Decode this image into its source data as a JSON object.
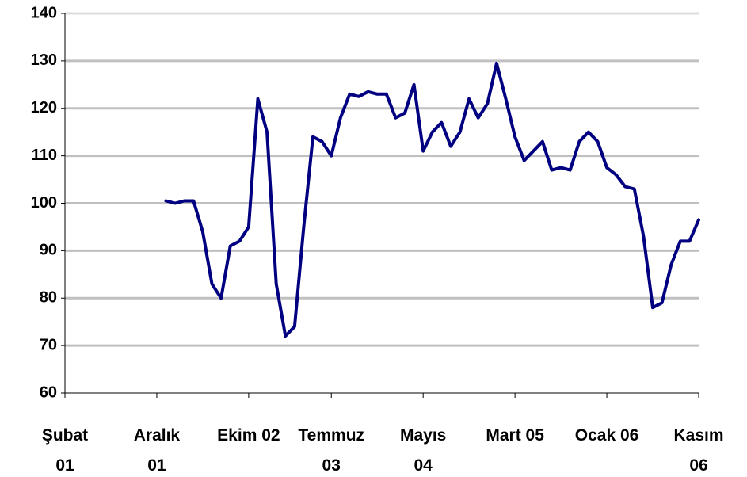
{
  "chart_data": {
    "type": "line",
    "categories": [
      "Şubat 01",
      null,
      null,
      null,
      null,
      null,
      null,
      null,
      null,
      null,
      "Aralık 01",
      null,
      null,
      null,
      null,
      null,
      null,
      null,
      null,
      null,
      "Ekim 02",
      null,
      null,
      null,
      null,
      null,
      null,
      null,
      null,
      "Temmuz 03",
      null,
      null,
      null,
      null,
      null,
      null,
      null,
      null,
      null,
      "Mayıs 04",
      null,
      null,
      null,
      null,
      null,
      null,
      null,
      null,
      null,
      "Mart 05",
      null,
      null,
      null,
      null,
      null,
      null,
      null,
      null,
      null,
      "Ocak 06",
      null,
      null,
      null,
      null,
      null,
      null,
      null,
      null,
      null,
      "Kasım 06"
    ],
    "series": [
      {
        "color": "#000080",
        "values": [
          null,
          null,
          null,
          null,
          null,
          null,
          null,
          null,
          null,
          null,
          null,
          100.5,
          100,
          100.5,
          100.5,
          94,
          83,
          80,
          91,
          92,
          95,
          122,
          115,
          83,
          72,
          74,
          95,
          114,
          113,
          110,
          118,
          123,
          122.5,
          123.5,
          123,
          123,
          118,
          119,
          125,
          111,
          115,
          117,
          112,
          115,
          122,
          118,
          121,
          129.5,
          122,
          114,
          109,
          111,
          113,
          107,
          107.5,
          107,
          113,
          115,
          113,
          107.5,
          106,
          103.5,
          103,
          93,
          78,
          79,
          87,
          92,
          92,
          96.5
        ]
      }
    ],
    "ylim": [
      60,
      140
    ],
    "yticks": [
      60,
      70,
      80,
      90,
      100,
      110,
      120,
      130,
      140
    ],
    "grid": true
  }
}
